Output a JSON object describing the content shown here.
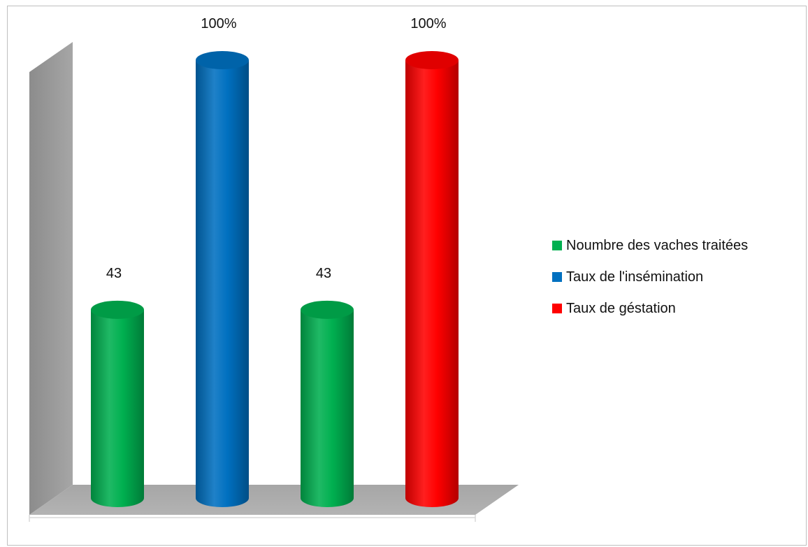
{
  "chart_data": {
    "type": "bar",
    "style": "3d-cylinder",
    "categories": [
      "Noumbre des vaches traitées",
      "Taux de l'insémination",
      "Noumbre des vaches traitées",
      "Taux de gestation"
    ],
    "values": [
      43,
      100,
      43,
      100
    ],
    "data_labels": [
      "43",
      "100%",
      "43",
      "100%"
    ],
    "bar_colors": [
      "#00b050",
      "#0070c0",
      "#00b050",
      "#ff0000"
    ],
    "ylim": [
      0,
      100
    ],
    "grid": false,
    "title": "",
    "xlabel": "",
    "ylabel": "",
    "legend": {
      "position": "right",
      "entries": [
        {
          "label": "Noumbre des vaches traitées",
          "color": "#00b050"
        },
        {
          "label": "Taux de l'insémination",
          "color": "#0070c0"
        },
        {
          "label": "Taux de géstation",
          "color": "#ff0000"
        }
      ]
    }
  }
}
